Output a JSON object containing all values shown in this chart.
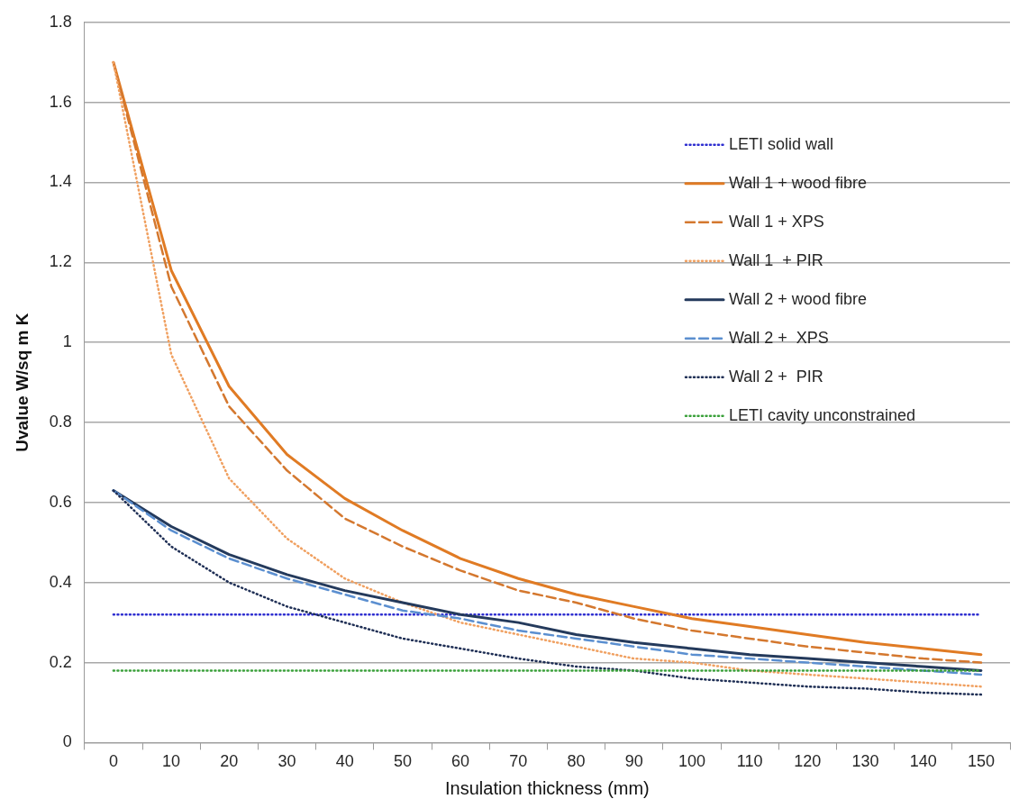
{
  "chart_data": {
    "type": "line",
    "xlabel": "Insulation thickness (mm)",
    "ylabel": "Uvalue W/sq m K",
    "categories": [
      "0",
      "10",
      "20",
      "30",
      "40",
      "50",
      "60",
      "70",
      "80",
      "90",
      "100",
      "110",
      "120",
      "130",
      "140",
      "150"
    ],
    "series": [
      {
        "name": "LETI solid wall",
        "color": "#2e2ed0",
        "line_style": "dotted",
        "values": [
          0.32,
          0.32,
          0.32,
          0.32,
          0.32,
          0.32,
          0.32,
          0.32,
          0.32,
          0.32,
          0.32,
          0.32,
          0.32,
          0.32,
          0.32,
          0.32
        ]
      },
      {
        "name": "Wall 1 + wood fibre",
        "color": "#e07b24",
        "line_style": "solid",
        "values": [
          1.7,
          1.18,
          0.89,
          0.72,
          0.61,
          0.53,
          0.46,
          0.41,
          0.37,
          0.34,
          0.31,
          0.29,
          0.27,
          0.25,
          0.235,
          0.22
        ]
      },
      {
        "name": "Wall 1 + XPS",
        "color": "#d4782f",
        "line_style": "dashed",
        "values": [
          1.7,
          1.14,
          0.84,
          0.68,
          0.56,
          0.49,
          0.43,
          0.38,
          0.35,
          0.31,
          0.28,
          0.26,
          0.24,
          0.225,
          0.21,
          0.2
        ]
      },
      {
        "name": "Wall 1  + PIR",
        "color": "#f0a060",
        "line_style": "dotted",
        "values": [
          1.7,
          0.97,
          0.66,
          0.51,
          0.41,
          0.35,
          0.3,
          0.27,
          0.24,
          0.21,
          0.2,
          0.18,
          0.17,
          0.16,
          0.15,
          0.14
        ]
      },
      {
        "name": "Wall 2 + wood fibre",
        "color": "#243a5c",
        "line_style": "solid",
        "values": [
          0.63,
          0.54,
          0.47,
          0.42,
          0.38,
          0.35,
          0.32,
          0.3,
          0.27,
          0.25,
          0.235,
          0.22,
          0.21,
          0.2,
          0.19,
          0.18
        ]
      },
      {
        "name": "Wall 2 +  XPS",
        "color": "#5b8fd0",
        "line_style": "dashed",
        "values": [
          0.63,
          0.53,
          0.46,
          0.41,
          0.37,
          0.33,
          0.31,
          0.28,
          0.26,
          0.24,
          0.22,
          0.21,
          0.2,
          0.19,
          0.18,
          0.17
        ]
      },
      {
        "name": "Wall 2 +  PIR",
        "color": "#1f2f55",
        "line_style": "dotted",
        "values": [
          0.63,
          0.49,
          0.4,
          0.34,
          0.3,
          0.26,
          0.235,
          0.21,
          0.19,
          0.18,
          0.16,
          0.15,
          0.14,
          0.135,
          0.125,
          0.12
        ]
      },
      {
        "name": "LETI cavity unconstrained",
        "color": "#3aa03a",
        "line_style": "dotted",
        "values": [
          0.18,
          0.18,
          0.18,
          0.18,
          0.18,
          0.18,
          0.18,
          0.18,
          0.18,
          0.18,
          0.18,
          0.18,
          0.18,
          0.18,
          0.18,
          0.18
        ]
      }
    ],
    "ylim": [
      0,
      1.8
    ],
    "yticks": [
      0,
      {
        "value": 0.2,
        "label": "0.2"
      },
      {
        "value": 0.4,
        "label": "0.4"
      },
      {
        "value": 0.6,
        "label": "0.6"
      },
      {
        "value": 0.8,
        "label": "0.8"
      },
      1,
      {
        "value": 1.2,
        "label": "1.2"
      },
      {
        "value": 1.4,
        "label": "1.4"
      },
      {
        "value": 1.6,
        "label": "1.6"
      },
      {
        "value": 1.8,
        "label": "1.8"
      }
    ],
    "grid": "y",
    "legend": "right",
    "marker": "none"
  }
}
